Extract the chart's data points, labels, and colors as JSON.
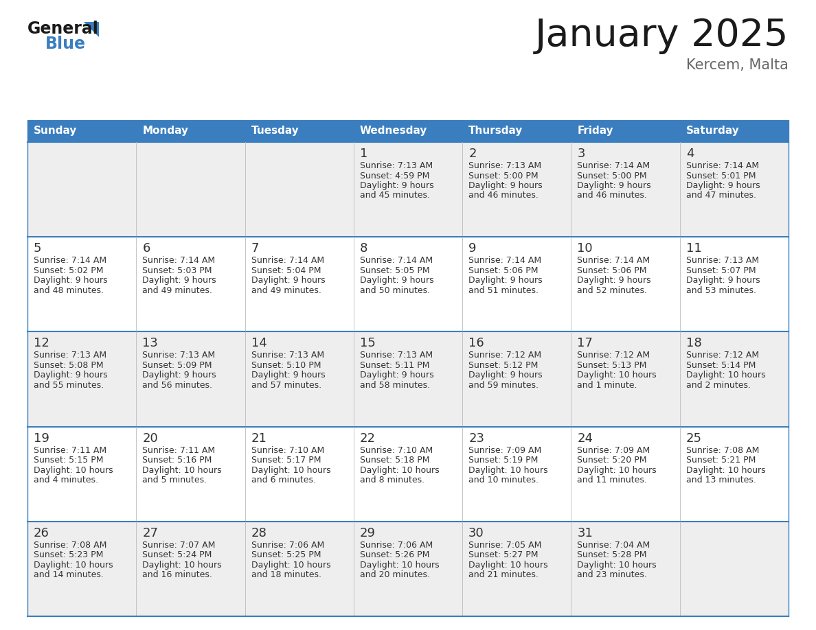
{
  "title": "January 2025",
  "subtitle": "Kercem, Malta",
  "header_bg": "#3a7ebf",
  "header_text_color": "#ffffff",
  "cell_bg_odd": "#eeeeee",
  "cell_bg_even": "#ffffff",
  "border_color": "#3a7ebf",
  "day_names": [
    "Sunday",
    "Monday",
    "Tuesday",
    "Wednesday",
    "Thursday",
    "Friday",
    "Saturday"
  ],
  "calendar_data": [
    [
      null,
      null,
      null,
      {
        "day": 1,
        "sunrise": "7:13 AM",
        "sunset": "4:59 PM",
        "daylight_line1": "Daylight: 9 hours",
        "daylight_line2": "and 45 minutes."
      },
      {
        "day": 2,
        "sunrise": "7:13 AM",
        "sunset": "5:00 PM",
        "daylight_line1": "Daylight: 9 hours",
        "daylight_line2": "and 46 minutes."
      },
      {
        "day": 3,
        "sunrise": "7:14 AM",
        "sunset": "5:00 PM",
        "daylight_line1": "Daylight: 9 hours",
        "daylight_line2": "and 46 minutes."
      },
      {
        "day": 4,
        "sunrise": "7:14 AM",
        "sunset": "5:01 PM",
        "daylight_line1": "Daylight: 9 hours",
        "daylight_line2": "and 47 minutes."
      }
    ],
    [
      {
        "day": 5,
        "sunrise": "7:14 AM",
        "sunset": "5:02 PM",
        "daylight_line1": "Daylight: 9 hours",
        "daylight_line2": "and 48 minutes."
      },
      {
        "day": 6,
        "sunrise": "7:14 AM",
        "sunset": "5:03 PM",
        "daylight_line1": "Daylight: 9 hours",
        "daylight_line2": "and 49 minutes."
      },
      {
        "day": 7,
        "sunrise": "7:14 AM",
        "sunset": "5:04 PM",
        "daylight_line1": "Daylight: 9 hours",
        "daylight_line2": "and 49 minutes."
      },
      {
        "day": 8,
        "sunrise": "7:14 AM",
        "sunset": "5:05 PM",
        "daylight_line1": "Daylight: 9 hours",
        "daylight_line2": "and 50 minutes."
      },
      {
        "day": 9,
        "sunrise": "7:14 AM",
        "sunset": "5:06 PM",
        "daylight_line1": "Daylight: 9 hours",
        "daylight_line2": "and 51 minutes."
      },
      {
        "day": 10,
        "sunrise": "7:14 AM",
        "sunset": "5:06 PM",
        "daylight_line1": "Daylight: 9 hours",
        "daylight_line2": "and 52 minutes."
      },
      {
        "day": 11,
        "sunrise": "7:13 AM",
        "sunset": "5:07 PM",
        "daylight_line1": "Daylight: 9 hours",
        "daylight_line2": "and 53 minutes."
      }
    ],
    [
      {
        "day": 12,
        "sunrise": "7:13 AM",
        "sunset": "5:08 PM",
        "daylight_line1": "Daylight: 9 hours",
        "daylight_line2": "and 55 minutes."
      },
      {
        "day": 13,
        "sunrise": "7:13 AM",
        "sunset": "5:09 PM",
        "daylight_line1": "Daylight: 9 hours",
        "daylight_line2": "and 56 minutes."
      },
      {
        "day": 14,
        "sunrise": "7:13 AM",
        "sunset": "5:10 PM",
        "daylight_line1": "Daylight: 9 hours",
        "daylight_line2": "and 57 minutes."
      },
      {
        "day": 15,
        "sunrise": "7:13 AM",
        "sunset": "5:11 PM",
        "daylight_line1": "Daylight: 9 hours",
        "daylight_line2": "and 58 minutes."
      },
      {
        "day": 16,
        "sunrise": "7:12 AM",
        "sunset": "5:12 PM",
        "daylight_line1": "Daylight: 9 hours",
        "daylight_line2": "and 59 minutes."
      },
      {
        "day": 17,
        "sunrise": "7:12 AM",
        "sunset": "5:13 PM",
        "daylight_line1": "Daylight: 10 hours",
        "daylight_line2": "and 1 minute."
      },
      {
        "day": 18,
        "sunrise": "7:12 AM",
        "sunset": "5:14 PM",
        "daylight_line1": "Daylight: 10 hours",
        "daylight_line2": "and 2 minutes."
      }
    ],
    [
      {
        "day": 19,
        "sunrise": "7:11 AM",
        "sunset": "5:15 PM",
        "daylight_line1": "Daylight: 10 hours",
        "daylight_line2": "and 4 minutes."
      },
      {
        "day": 20,
        "sunrise": "7:11 AM",
        "sunset": "5:16 PM",
        "daylight_line1": "Daylight: 10 hours",
        "daylight_line2": "and 5 minutes."
      },
      {
        "day": 21,
        "sunrise": "7:10 AM",
        "sunset": "5:17 PM",
        "daylight_line1": "Daylight: 10 hours",
        "daylight_line2": "and 6 minutes."
      },
      {
        "day": 22,
        "sunrise": "7:10 AM",
        "sunset": "5:18 PM",
        "daylight_line1": "Daylight: 10 hours",
        "daylight_line2": "and 8 minutes."
      },
      {
        "day": 23,
        "sunrise": "7:09 AM",
        "sunset": "5:19 PM",
        "daylight_line1": "Daylight: 10 hours",
        "daylight_line2": "and 10 minutes."
      },
      {
        "day": 24,
        "sunrise": "7:09 AM",
        "sunset": "5:20 PM",
        "daylight_line1": "Daylight: 10 hours",
        "daylight_line2": "and 11 minutes."
      },
      {
        "day": 25,
        "sunrise": "7:08 AM",
        "sunset": "5:21 PM",
        "daylight_line1": "Daylight: 10 hours",
        "daylight_line2": "and 13 minutes."
      }
    ],
    [
      {
        "day": 26,
        "sunrise": "7:08 AM",
        "sunset": "5:23 PM",
        "daylight_line1": "Daylight: 10 hours",
        "daylight_line2": "and 14 minutes."
      },
      {
        "day": 27,
        "sunrise": "7:07 AM",
        "sunset": "5:24 PM",
        "daylight_line1": "Daylight: 10 hours",
        "daylight_line2": "and 16 minutes."
      },
      {
        "day": 28,
        "sunrise": "7:06 AM",
        "sunset": "5:25 PM",
        "daylight_line1": "Daylight: 10 hours",
        "daylight_line2": "and 18 minutes."
      },
      {
        "day": 29,
        "sunrise": "7:06 AM",
        "sunset": "5:26 PM",
        "daylight_line1": "Daylight: 10 hours",
        "daylight_line2": "and 20 minutes."
      },
      {
        "day": 30,
        "sunrise": "7:05 AM",
        "sunset": "5:27 PM",
        "daylight_line1": "Daylight: 10 hours",
        "daylight_line2": "and 21 minutes."
      },
      {
        "day": 31,
        "sunrise": "7:04 AM",
        "sunset": "5:28 PM",
        "daylight_line1": "Daylight: 10 hours",
        "daylight_line2": "and 23 minutes."
      },
      null
    ]
  ],
  "logo_text_general": "General",
  "logo_text_blue": "Blue",
  "text_color_dark": "#333333",
  "text_color_body": "#333333",
  "title_fontsize": 40,
  "subtitle_fontsize": 15,
  "header_fontsize": 11,
  "day_num_fontsize": 13,
  "body_fontsize": 9
}
